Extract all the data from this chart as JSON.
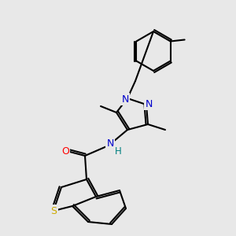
{
  "background_color": "#e8e8e8",
  "atom_N": "#0000cc",
  "atom_O": "#ff0000",
  "atom_S": "#ccaa00",
  "atom_H": "#008080",
  "bond_lw": 1.5,
  "figsize": [
    3.0,
    3.0
  ],
  "dpi": 100,
  "xlim": [
    0,
    300
  ],
  "ylim": [
    0,
    300
  ]
}
